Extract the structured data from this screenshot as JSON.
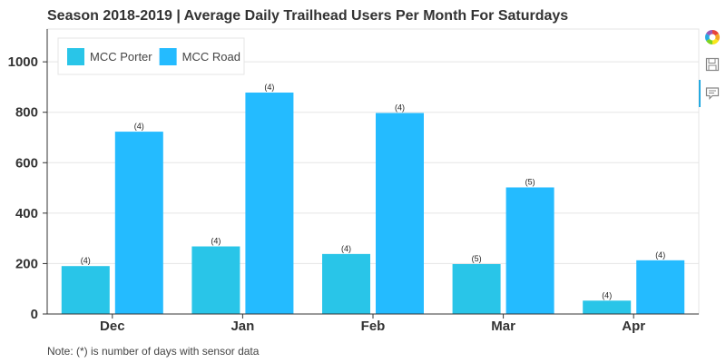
{
  "chart_data": {
    "type": "bar",
    "title": "Season 2018-2019 | Average Daily Trailhead Users Per Month For Saturdays",
    "categories": [
      "Dec",
      "Jan",
      "Feb",
      "Mar",
      "Apr"
    ],
    "series": [
      {
        "name": "MCC Porter",
        "color": "#29c5e8",
        "values": [
          190,
          268,
          238,
          198,
          53
        ],
        "labels": [
          "(4)",
          "(4)",
          "(4)",
          "(5)",
          "(4)"
        ]
      },
      {
        "name": "MCC Road",
        "color": "#24bbff",
        "values": [
          723,
          878,
          797,
          502,
          213
        ],
        "labels": [
          "(4)",
          "(4)",
          "(4)",
          "(5)",
          "(4)"
        ]
      }
    ],
    "ylim": [
      0,
      1130
    ],
    "yticks": [
      0,
      200,
      400,
      600,
      800,
      1000
    ],
    "grid": true,
    "legend": "top-left"
  },
  "note": "Note: (*) is number of days with sensor data",
  "toolbar": {
    "tools": [
      {
        "name": "bokeh-logo-icon"
      },
      {
        "name": "save-icon"
      },
      {
        "name": "hover-icon"
      }
    ]
  }
}
